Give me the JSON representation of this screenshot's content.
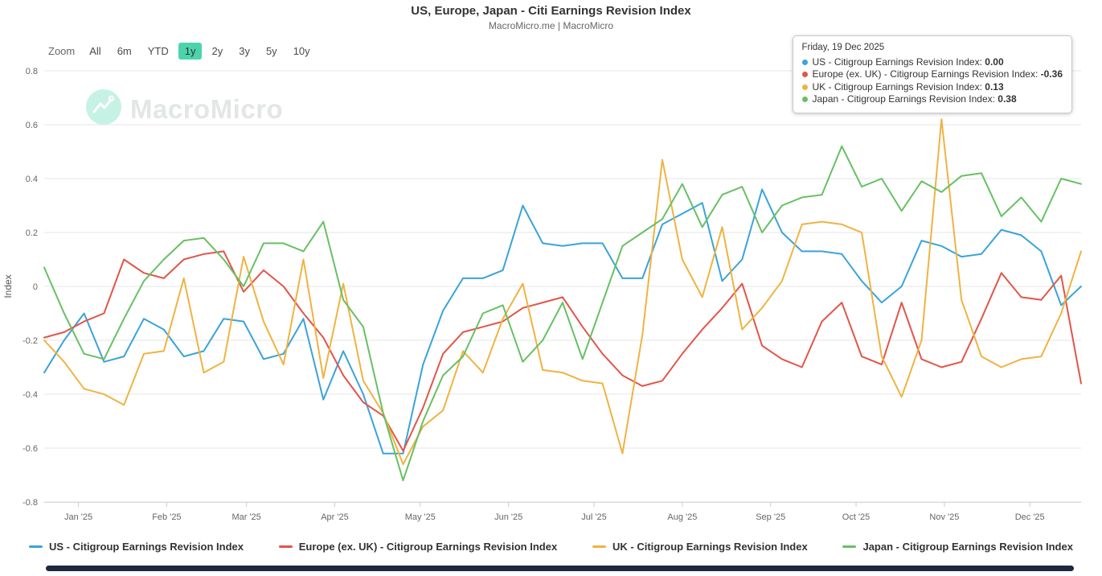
{
  "header": {
    "title": "US, Europe, Japan - Citi Earnings Revision Index",
    "subtitle": "MacroMicro.me | MacroMicro"
  },
  "toolbar": {
    "zoom_label": "Zoom",
    "range_buttons": [
      "All",
      "6m",
      "YTD",
      "1y",
      "2y",
      "3y",
      "5y",
      "10y"
    ],
    "selected_range": "1y",
    "selected_bg": "#4bd4ab"
  },
  "watermark": {
    "text": "MacroMicro",
    "logo_color": "#7fe3c4"
  },
  "tooltip": {
    "date": "Friday, 19 Dec 2025",
    "items": [
      {
        "label": "US - Citigroup Earnings Revision Index",
        "value": "0.00",
        "color": "#3aa3db"
      },
      {
        "label": "Europe (ex. UK) - Citigroup Earnings Revision Index",
        "value": "-0.36",
        "color": "#e25549"
      },
      {
        "label": "UK - Citigroup Earnings Revision Index",
        "value": "0.13",
        "color": "#efb341"
      },
      {
        "label": "Japan - Citigroup Earnings Revision Index",
        "value": "0.38",
        "color": "#67c063"
      }
    ]
  },
  "legend": [
    {
      "label": "US - Citigroup Earnings Revision Index",
      "color": "#3aa3db"
    },
    {
      "label": "Europe (ex. UK) - Citigroup Earnings Revision Index",
      "color": "#e25549"
    },
    {
      "label": "UK - Citigroup Earnings Revision Index",
      "color": "#efb341"
    },
    {
      "label": "Japan - Citigroup Earnings Revision Index",
      "color": "#67c063"
    }
  ],
  "chart_data": {
    "type": "line",
    "title": "US, Europe, Japan - Citi Earnings Revision Index",
    "ylabel": "Index",
    "xlabel": "",
    "ylim": [
      -0.8,
      0.8
    ],
    "yticks": [
      0.8,
      0.6,
      0.4,
      0.2,
      0,
      -0.2,
      -0.4,
      -0.6,
      -0.8
    ],
    "grid": true,
    "legend_position": "bottom",
    "x_tick_labels": [
      "Jan '25",
      "Feb '25",
      "Mar '25",
      "Apr '25",
      "May '25",
      "Jun '25",
      "Jul '25",
      "Aug '25",
      "Sep '25",
      "Oct '25",
      "Nov '25",
      "Dec '25"
    ],
    "x": [
      "2024-12-20",
      "2024-12-27",
      "2025-01-03",
      "2025-01-10",
      "2025-01-17",
      "2025-01-24",
      "2025-01-31",
      "2025-02-07",
      "2025-02-14",
      "2025-02-21",
      "2025-02-28",
      "2025-03-07",
      "2025-03-14",
      "2025-03-21",
      "2025-03-28",
      "2025-04-04",
      "2025-04-11",
      "2025-04-18",
      "2025-04-25",
      "2025-05-02",
      "2025-05-09",
      "2025-05-16",
      "2025-05-23",
      "2025-05-30",
      "2025-06-06",
      "2025-06-13",
      "2025-06-20",
      "2025-06-27",
      "2025-07-04",
      "2025-07-11",
      "2025-07-18",
      "2025-07-25",
      "2025-08-01",
      "2025-08-08",
      "2025-08-15",
      "2025-08-22",
      "2025-08-29",
      "2025-09-05",
      "2025-09-12",
      "2025-09-19",
      "2025-09-26",
      "2025-10-03",
      "2025-10-10",
      "2025-10-17",
      "2025-10-24",
      "2025-10-31",
      "2025-11-07",
      "2025-11-14",
      "2025-11-21",
      "2025-11-28",
      "2025-12-05",
      "2025-12-12",
      "2025-12-19"
    ],
    "series": [
      {
        "name": "US - Citigroup Earnings Revision Index",
        "color": "#3aa3db",
        "values": [
          -0.32,
          -0.2,
          -0.1,
          -0.28,
          -0.26,
          -0.12,
          -0.16,
          -0.26,
          -0.24,
          -0.12,
          -0.13,
          -0.27,
          -0.25,
          -0.12,
          -0.42,
          -0.24,
          -0.4,
          -0.62,
          -0.62,
          -0.29,
          -0.09,
          0.03,
          0.03,
          0.06,
          0.3,
          0.16,
          0.15,
          0.16,
          0.16,
          0.03,
          0.03,
          0.23,
          0.27,
          0.31,
          0.02,
          0.1,
          0.36,
          0.2,
          0.13,
          0.13,
          0.12,
          0.02,
          -0.06,
          0.0,
          0.17,
          0.15,
          0.11,
          0.12,
          0.21,
          0.19,
          0.13,
          -0.07,
          0.0
        ]
      },
      {
        "name": "Europe (ex. UK) - Citigroup Earnings Revision Index",
        "color": "#e25549",
        "values": [
          -0.19,
          -0.17,
          -0.13,
          -0.1,
          0.1,
          0.05,
          0.03,
          0.1,
          0.12,
          0.13,
          -0.02,
          0.06,
          0.0,
          -0.1,
          -0.19,
          -0.33,
          -0.43,
          -0.48,
          -0.61,
          -0.45,
          -0.25,
          -0.17,
          -0.15,
          -0.13,
          -0.08,
          -0.06,
          -0.04,
          -0.15,
          -0.25,
          -0.33,
          -0.37,
          -0.35,
          -0.25,
          -0.16,
          -0.08,
          0.01,
          -0.22,
          -0.27,
          -0.3,
          -0.13,
          -0.06,
          -0.26,
          -0.29,
          -0.06,
          -0.27,
          -0.3,
          -0.28,
          -0.12,
          0.05,
          -0.04,
          -0.05,
          0.04,
          -0.36
        ]
      },
      {
        "name": "UK - Citigroup Earnings Revision Index",
        "color": "#efb341",
        "values": [
          -0.2,
          -0.28,
          -0.38,
          -0.4,
          -0.44,
          -0.25,
          -0.24,
          0.03,
          -0.32,
          -0.28,
          0.11,
          -0.13,
          -0.29,
          0.1,
          -0.34,
          0.01,
          -0.35,
          -0.47,
          -0.66,
          -0.52,
          -0.46,
          -0.24,
          -0.32,
          -0.12,
          0.01,
          -0.31,
          -0.32,
          -0.35,
          -0.36,
          -0.62,
          -0.18,
          0.47,
          0.1,
          -0.04,
          0.22,
          -0.16,
          -0.08,
          0.02,
          0.23,
          0.24,
          0.23,
          0.2,
          -0.26,
          -0.41,
          -0.2,
          0.62,
          -0.05,
          -0.26,
          -0.3,
          -0.27,
          -0.26,
          -0.1,
          0.13
        ]
      },
      {
        "name": "Japan - Citigroup Earnings Revision Index",
        "color": "#67c063",
        "values": [
          0.07,
          -0.1,
          -0.25,
          -0.27,
          -0.12,
          0.02,
          0.1,
          0.17,
          0.18,
          0.1,
          0.0,
          0.16,
          0.16,
          0.13,
          0.24,
          -0.05,
          -0.15,
          -0.47,
          -0.72,
          -0.5,
          -0.33,
          -0.26,
          -0.1,
          -0.07,
          -0.28,
          -0.2,
          -0.06,
          -0.27,
          -0.06,
          0.15,
          0.2,
          0.25,
          0.38,
          0.22,
          0.34,
          0.37,
          0.2,
          0.3,
          0.33,
          0.34,
          0.52,
          0.37,
          0.4,
          0.28,
          0.39,
          0.35,
          0.41,
          0.42,
          0.26,
          0.33,
          0.24,
          0.4,
          0.38
        ]
      }
    ]
  }
}
